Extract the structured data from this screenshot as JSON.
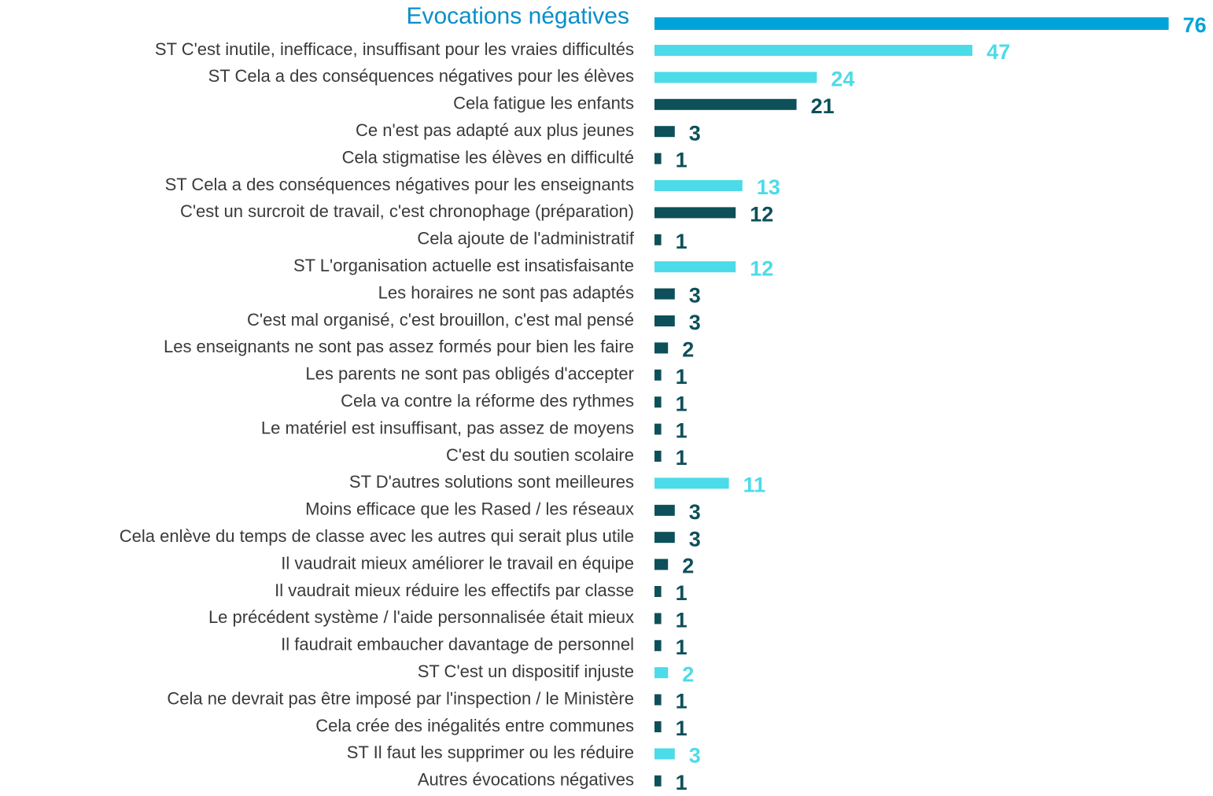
{
  "chart_data": {
    "type": "bar",
    "orientation": "horizontal",
    "categories": [
      "Evocations négatives",
      "ST C'est inutile, inefficace, insuffisant pour les vraies difficultés",
      "ST Cela a des conséquences négatives pour les élèves",
      "Cela fatigue les enfants",
      "Ce n'est pas adapté aux plus jeunes",
      "Cela stigmatise les élèves en difficulté",
      "ST Cela a des conséquences négatives pour les enseignants",
      "C'est un surcroit de travail, c'est chronophage (préparation)",
      "Cela ajoute de l'administratif",
      "ST L'organisation actuelle est insatisfaisante",
      "Les horaires ne sont pas adaptés",
      "C'est mal organisé, c'est brouillon, c'est mal pensé",
      "Les enseignants ne sont pas assez formés pour bien les faire",
      "Les parents ne sont pas obligés d'accepter",
      "Cela va contre la réforme des rythmes",
      "Le matériel est insuffisant, pas assez de moyens",
      "C'est du soutien scolaire",
      "ST D'autres solutions sont meilleures",
      "Moins efficace que les Rased / les réseaux",
      "Cela enlève du temps de classe avec les autres qui serait plus utile",
      "Il vaudrait mieux améliorer le travail en équipe",
      "Il vaudrait mieux réduire les effectifs par classe",
      "Le précédent système / l'aide personnalisée était mieux",
      "Il faudrait embaucher davantage de personnel",
      "ST C'est un dispositif injuste",
      "Cela ne devrait pas être imposé par l'inspection / le Ministère",
      "Cela crée des inégalités entre communes",
      "ST Il faut les supprimer ou les réduire",
      "Autres évocations négatives"
    ],
    "values": [
      76,
      47,
      24,
      21,
      3,
      1,
      13,
      12,
      1,
      12,
      3,
      3,
      2,
      1,
      1,
      1,
      1,
      11,
      3,
      3,
      2,
      1,
      1,
      1,
      2,
      1,
      1,
      3,
      1
    ],
    "colors": [
      "#00a3d9",
      "#4cdbe8",
      "#4cdbe8",
      "#0d5059",
      "#0d5059",
      "#0d5059",
      "#4cdbe8",
      "#0d5059",
      "#0d5059",
      "#4cdbe8",
      "#0d5059",
      "#0d5059",
      "#0d5059",
      "#0d5059",
      "#0d5059",
      "#0d5059",
      "#0d5059",
      "#4cdbe8",
      "#0d5059",
      "#0d5059",
      "#0d5059",
      "#0d5059",
      "#0d5059",
      "#0d5059",
      "#4cdbe8",
      "#0d5059",
      "#0d5059",
      "#4cdbe8",
      "#0d5059"
    ]
  }
}
